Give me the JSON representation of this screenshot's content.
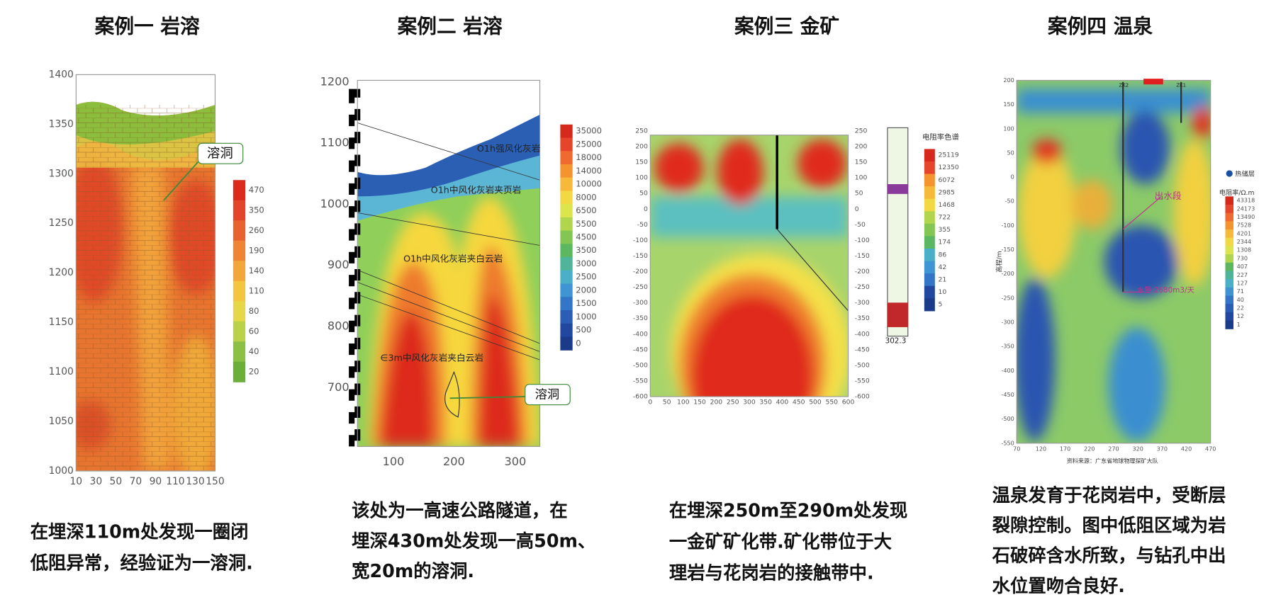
{
  "panels": [
    {
      "title": "案例一 岩溶",
      "y_ticks": [
        1400,
        1350,
        1300,
        1250,
        1200,
        1150,
        1100,
        1050,
        1000
      ],
      "x_ticks": [
        10,
        30,
        50,
        70,
        90,
        110,
        130,
        150
      ],
      "legend": {
        "labels": [
          470,
          350,
          260,
          190,
          140,
          110,
          80,
          60,
          40,
          20
        ]
      },
      "annotations": [
        "溶洞"
      ],
      "caption": [
        "在埋深110m处发现一圈闭",
        "低阻异常，经验证为一溶洞."
      ]
    },
    {
      "title": "案例二  岩溶",
      "y_ticks": [
        1200,
        1100,
        1000,
        900,
        800,
        700
      ],
      "x_ticks": [
        100,
        200,
        300
      ],
      "legend": {
        "labels": [
          35000,
          25000,
          18000,
          14000,
          10000,
          8000,
          6500,
          5500,
          4500,
          3500,
          3000,
          2500,
          2000,
          1500,
          1000,
          500,
          0
        ]
      },
      "annotations": [
        "溶洞",
        "O1h强风化灰岩",
        "O1h中风化灰岩夹页岩",
        "O1h中风化灰岩夹白云岩",
        "∈3m中风化灰岩夹白云岩"
      ],
      "caption": [
        "该处为一高速公路隧道，在",
        "埋深430m处发现一高50m、",
        "宽20m的溶洞."
      ]
    },
    {
      "title": "案例三  金矿",
      "y_ticks": [
        250,
        200,
        150,
        100,
        50,
        0,
        -50,
        -100,
        -150,
        -200,
        -250,
        -300,
        -350,
        -400,
        -450,
        -500,
        -550,
        -600
      ],
      "right_y_ticks": [
        250,
        200,
        150,
        100,
        50,
        0,
        -50,
        -100,
        -150,
        -200,
        -250,
        -300,
        -350,
        -400,
        -450,
        -500,
        -550,
        -600
      ],
      "x_ticks": [
        0,
        50,
        100,
        150,
        200,
        250,
        300,
        350,
        400,
        450,
        500,
        550,
        600
      ],
      "legend": {
        "title": "电阻率色谱",
        "labels": [
          25119,
          12350,
          6072,
          2985,
          1468,
          722,
          355,
          174,
          86,
          42,
          21,
          10,
          5
        ]
      },
      "annotations": [
        "302.3"
      ],
      "caption": [
        "在埋深250m至290m处发现",
        "一金矿矿化带.矿化带位于大",
        "理岩与花岗岩的接触带中."
      ]
    },
    {
      "title": "案例四  温泉",
      "y_ticks": [
        200,
        150,
        100,
        50,
        0,
        -50,
        -100,
        -150,
        -200,
        -250,
        -300,
        -350,
        -400,
        -450,
        -500,
        -550
      ],
      "x_ticks": [
        70,
        120,
        170,
        220,
        270,
        320,
        370,
        420,
        470
      ],
      "y_label": "高程/m",
      "legend": {
        "marker": "热储层",
        "title": "电阻率/Ω.m",
        "labels": [
          43318,
          24173,
          13490,
          7528,
          4201,
          2344,
          1308,
          730,
          407,
          227,
          127,
          71,
          40,
          22,
          12,
          1
        ]
      },
      "annotations": [
        "出水段",
        "水量:2680m3/天",
        "ZK2",
        "ZK1"
      ],
      "source": "资料来源：广东省地球物理探矿大队",
      "caption": [
        "温泉发育于花岗岩中，受断层",
        "裂隙控制。图中低阻区域为岩",
        "石破碎含水所致，与钻孔中出",
        "水位置吻合良好."
      ]
    }
  ]
}
